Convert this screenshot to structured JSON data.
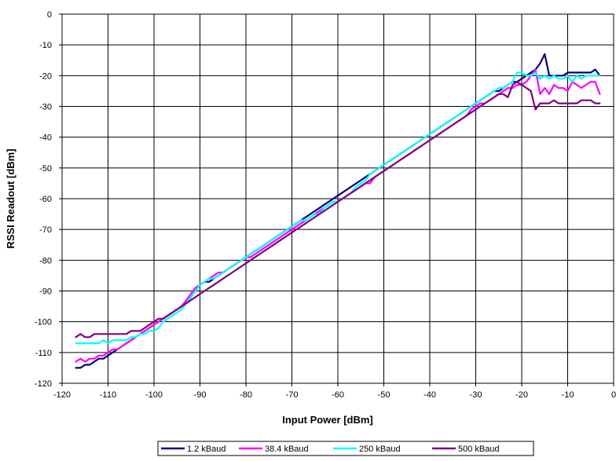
{
  "chart_data": {
    "type": "line",
    "title": "",
    "xlabel": "Input Power [dBm]",
    "ylabel": "RSSI Readout [dBm]",
    "xlim": [
      -120,
      0
    ],
    "ylim": [
      -120,
      0
    ],
    "xticks": [
      -120,
      -110,
      -100,
      -90,
      -80,
      -70,
      -60,
      -50,
      -40,
      -30,
      -20,
      -10,
      0
    ],
    "yticks": [
      0,
      -10,
      -20,
      -30,
      -40,
      -50,
      -60,
      -70,
      -80,
      -90,
      -100,
      -110,
      -120
    ],
    "grid": true,
    "legend_position": "bottom",
    "series": [
      {
        "name": "1.2 kBaud",
        "color": "#000080",
        "x": [
          -117,
          -116,
          -115,
          -114,
          -113,
          -112,
          -111,
          -110,
          -109,
          -108,
          -107,
          -106,
          -105,
          -104,
          -103,
          -102,
          -101,
          -100,
          -99,
          -98,
          -97,
          -96,
          -95,
          -94,
          -93,
          -92,
          -91,
          -90,
          -89,
          -88,
          -87,
          -86,
          -85,
          -84,
          -83,
          -82,
          -81,
          -80,
          -79,
          -78,
          -77,
          -76,
          -75,
          -74,
          -73,
          -72,
          -71,
          -70,
          -69,
          -68,
          -67,
          -66,
          -65,
          -64,
          -63,
          -62,
          -61,
          -60,
          -59,
          -58,
          -57,
          -56,
          -55,
          -54,
          -53,
          -52,
          -51,
          -50,
          -49,
          -48,
          -47,
          -46,
          -45,
          -44,
          -43,
          -42,
          -41,
          -40,
          -39,
          -38,
          -37,
          -36,
          -35,
          -34,
          -33,
          -32,
          -31,
          -30,
          -29,
          -28,
          -27,
          -26,
          -25,
          -24,
          -23,
          -22,
          -21,
          -20,
          -19,
          -18,
          -17,
          -16,
          -15,
          -14,
          -13,
          -12,
          -11,
          -10,
          -9,
          -8,
          -7,
          -6,
          -5,
          -4,
          -3
        ],
        "y": [
          -115,
          -115,
          -114,
          -114,
          -113,
          -112,
          -112,
          -111,
          -110,
          -109,
          -108,
          -107,
          -106,
          -105,
          -104,
          -103,
          -102,
          -101,
          -100,
          -99,
          -98,
          -97,
          -96,
          -95,
          -94,
          -92,
          -90,
          -88,
          -87,
          -87,
          -86,
          -85,
          -84,
          -83,
          -82,
          -81,
          -80,
          -79,
          -78,
          -77,
          -76,
          -75,
          -74,
          -73,
          -72,
          -71,
          -70,
          -69,
          -68,
          -67,
          -66,
          -65,
          -64,
          -63,
          -62,
          -61,
          -60,
          -59,
          -58,
          -57,
          -56,
          -55,
          -54,
          -53,
          -52,
          -51,
          -50,
          -49,
          -48,
          -47,
          -46,
          -45,
          -44,
          -43,
          -42,
          -41,
          -40,
          -39,
          -38,
          -37,
          -36,
          -35,
          -34,
          -33,
          -32,
          -31,
          -30,
          -29,
          -28,
          -27,
          -26,
          -25,
          -25,
          -24,
          -23,
          -22,
          -22,
          -21,
          -20,
          -19,
          -18,
          -16,
          -13,
          -20,
          -20,
          -20,
          -20,
          -19,
          -19,
          -19,
          -19,
          -19,
          -19,
          -18,
          -20
        ]
      },
      {
        "name": "38.4 kBaud",
        "color": "#FF00FF",
        "x": [
          -117,
          -116,
          -115,
          -114,
          -113,
          -112,
          -111,
          -110,
          -109,
          -108,
          -107,
          -106,
          -105,
          -104,
          -103,
          -102,
          -101,
          -100,
          -99,
          -98,
          -97,
          -96,
          -95,
          -94,
          -93,
          -92,
          -91,
          -90,
          -89,
          -88,
          -87,
          -86,
          -85,
          -84,
          -83,
          -82,
          -81,
          -80,
          -79,
          -78,
          -77,
          -76,
          -75,
          -74,
          -73,
          -72,
          -71,
          -70,
          -69,
          -68,
          -67,
          -66,
          -65,
          -64,
          -63,
          -62,
          -61,
          -60,
          -59,
          -58,
          -57,
          -56,
          -55,
          -54,
          -53,
          -52,
          -51,
          -50,
          -49,
          -48,
          -47,
          -46,
          -45,
          -44,
          -43,
          -42,
          -41,
          -40,
          -39,
          -38,
          -37,
          -36,
          -35,
          -34,
          -33,
          -32,
          -31,
          -30,
          -29,
          -28,
          -27,
          -26,
          -25,
          -24,
          -23,
          -22,
          -21,
          -20,
          -19,
          -18,
          -17,
          -16,
          -15,
          -14,
          -13,
          -12,
          -11,
          -10,
          -9,
          -8,
          -7,
          -6,
          -5,
          -4,
          -3
        ],
        "y": [
          -113,
          -112,
          -113,
          -112,
          -112,
          -111,
          -111,
          -110,
          -109,
          -109,
          -108,
          -107,
          -106,
          -105,
          -104,
          -103,
          -102,
          -101,
          -100,
          -99,
          -98,
          -97,
          -96,
          -95,
          -93,
          -91,
          -89,
          -88,
          -87,
          -86,
          -85,
          -84,
          -84,
          -83,
          -82,
          -81,
          -80,
          -79,
          -79,
          -78,
          -77,
          -76,
          -75,
          -74,
          -73,
          -72,
          -71,
          -70,
          -69,
          -68,
          -67,
          -66,
          -65,
          -64,
          -63,
          -62,
          -61,
          -61,
          -60,
          -59,
          -58,
          -57,
          -56,
          -55,
          -55,
          -53,
          -52,
          -51,
          -50,
          -49,
          -48,
          -47,
          -46,
          -45,
          -44,
          -43,
          -42,
          -41,
          -40,
          -39,
          -38,
          -37,
          -36,
          -35,
          -34,
          -33,
          -31,
          -30,
          -29,
          -29,
          -28,
          -27,
          -26,
          -25,
          -24,
          -24,
          -23,
          -23,
          -22,
          -20,
          -18,
          -26,
          -24,
          -26,
          -23,
          -24,
          -24,
          -25,
          -22,
          -23,
          -24,
          -23,
          -22,
          -22,
          -26
        ]
      },
      {
        "name": "250 kBaud",
        "color": "#00FFFF",
        "x": [
          -117,
          -116,
          -115,
          -114,
          -113,
          -112,
          -111,
          -110,
          -109,
          -108,
          -107,
          -106,
          -105,
          -104,
          -103,
          -102,
          -101,
          -100,
          -99,
          -98,
          -97,
          -96,
          -95,
          -94,
          -93,
          -92,
          -91,
          -90,
          -89,
          -88,
          -87,
          -86,
          -85,
          -84,
          -83,
          -82,
          -81,
          -80,
          -79,
          -78,
          -77,
          -76,
          -75,
          -74,
          -73,
          -72,
          -71,
          -70,
          -69,
          -68,
          -67,
          -66,
          -65,
          -64,
          -63,
          -62,
          -61,
          -60,
          -59,
          -58,
          -57,
          -56,
          -55,
          -54,
          -53,
          -52,
          -51,
          -50,
          -49,
          -48,
          -47,
          -46,
          -45,
          -44,
          -43,
          -42,
          -41,
          -40,
          -39,
          -38,
          -37,
          -36,
          -35,
          -34,
          -33,
          -32,
          -31,
          -30,
          -29,
          -28,
          -27,
          -26,
          -25,
          -24,
          -23,
          -22,
          -21,
          -20,
          -19,
          -18,
          -17,
          -16,
          -15,
          -14,
          -13,
          -12,
          -11,
          -10,
          -9,
          -8,
          -7,
          -6,
          -5,
          -4,
          -3
        ],
        "y": [
          -107,
          -107,
          -107,
          -107,
          -107,
          -107,
          -106,
          -107,
          -106,
          -106,
          -106,
          -106,
          -105,
          -105,
          -104,
          -104,
          -103,
          -103,
          -102,
          -100,
          -99,
          -98,
          -97,
          -96,
          -94,
          -92,
          -90,
          -88,
          -87,
          -86,
          -86,
          -85,
          -84,
          -83,
          -82,
          -81,
          -80,
          -79,
          -78,
          -77,
          -76,
          -75,
          -74,
          -73,
          -72,
          -71,
          -70,
          -69,
          -68,
          -67,
          -67,
          -66,
          -65,
          -65,
          -63,
          -62,
          -61,
          -61,
          -60,
          -59,
          -58,
          -56,
          -55,
          -54,
          -52,
          -51,
          -50,
          -49,
          -48,
          -47,
          -46,
          -45,
          -44,
          -43,
          -42,
          -41,
          -40,
          -39,
          -38,
          -37,
          -36,
          -35,
          -34,
          -33,
          -32,
          -31,
          -30,
          -29,
          -28,
          -27,
          -26,
          -25,
          -24,
          -24,
          -23,
          -22,
          -19,
          -19,
          -20,
          -20,
          -19,
          -21,
          -20,
          -21,
          -20,
          -21,
          -21,
          -20,
          -22,
          -20,
          -21,
          -20,
          -20,
          -20,
          -20
        ]
      },
      {
        "name": "500 kBaud",
        "color": "#800080",
        "x": [
          -117,
          -116,
          -115,
          -114,
          -113,
          -112,
          -111,
          -110,
          -109,
          -108,
          -107,
          -106,
          -105,
          -104,
          -103,
          -102,
          -101,
          -100,
          -99,
          -98,
          -97,
          -96,
          -95,
          -94,
          -93,
          -92,
          -91,
          -90,
          -89,
          -88,
          -87,
          -86,
          -85,
          -84,
          -83,
          -82,
          -81,
          -80,
          -79,
          -78,
          -77,
          -76,
          -75,
          -74,
          -73,
          -72,
          -71,
          -70,
          -69,
          -68,
          -67,
          -66,
          -65,
          -64,
          -63,
          -62,
          -61,
          -60,
          -59,
          -58,
          -57,
          -56,
          -55,
          -54,
          -53,
          -52,
          -51,
          -50,
          -49,
          -48,
          -47,
          -46,
          -45,
          -44,
          -43,
          -42,
          -41,
          -40,
          -39,
          -38,
          -37,
          -36,
          -35,
          -34,
          -33,
          -32,
          -31,
          -30,
          -29,
          -28,
          -27,
          -26,
          -25,
          -24,
          -23,
          -22,
          -21,
          -20,
          -19,
          -18,
          -17,
          -16,
          -15,
          -14,
          -13,
          -12,
          -11,
          -10,
          -9,
          -8,
          -7,
          -6,
          -5,
          -4,
          -3
        ],
        "y": [
          -105,
          -104,
          -105,
          -105,
          -104,
          -104,
          -104,
          -104,
          -104,
          -104,
          -104,
          -104,
          -103,
          -103,
          -103,
          -102,
          -101,
          -100,
          -99,
          -99,
          -98,
          -97,
          -96,
          -95,
          -94,
          -93,
          -92,
          -91,
          -90,
          -89,
          -88,
          -87,
          -86,
          -85,
          -84,
          -83,
          -82,
          -81,
          -80,
          -79,
          -78,
          -77,
          -76,
          -75,
          -74,
          -73,
          -72,
          -71,
          -70,
          -69,
          -68,
          -67,
          -66,
          -65,
          -64,
          -63,
          -62,
          -61,
          -60,
          -59,
          -58,
          -57,
          -56,
          -55,
          -54,
          -53,
          -52,
          -51,
          -50,
          -49,
          -48,
          -47,
          -46,
          -45,
          -44,
          -43,
          -42,
          -41,
          -40,
          -39,
          -38,
          -37,
          -36,
          -35,
          -34,
          -33,
          -32,
          -31,
          -30,
          -29,
          -28,
          -27,
          -26,
          -26,
          -27,
          -23,
          -22,
          -23,
          -24,
          -25,
          -31,
          -29,
          -29,
          -29,
          -28,
          -29,
          -29,
          -29,
          -29,
          -29,
          -28,
          -28,
          -28,
          -29,
          -29
        ]
      }
    ]
  }
}
